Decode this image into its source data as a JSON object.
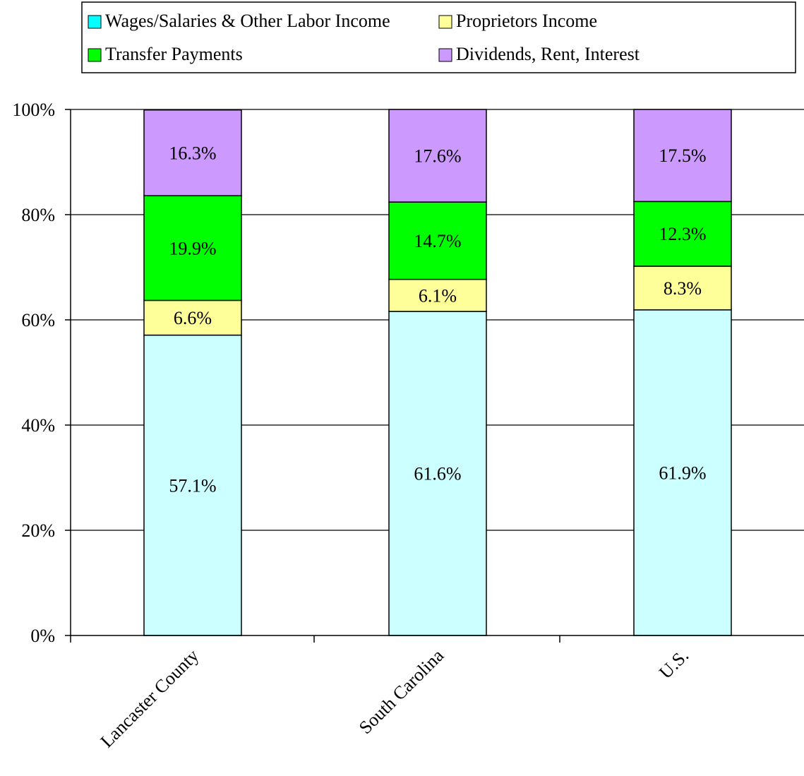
{
  "chart_data": {
    "type": "bar",
    "stacked": true,
    "percent_stacked": true,
    "categories": [
      "Lancaster County",
      "South Carolina",
      "U.S."
    ],
    "series": [
      {
        "name": "Wages/Salaries & Other Labor Income",
        "values": [
          57.1,
          61.6,
          61.9
        ],
        "color": "#CCFFFF",
        "legend_color": "#00FFFF"
      },
      {
        "name": "Proprietors Income",
        "values": [
          6.6,
          6.1,
          8.3
        ],
        "color": "#FFFF99",
        "legend_color": "#FFFF99"
      },
      {
        "name": "Transfer Payments",
        "values": [
          19.9,
          14.7,
          12.3
        ],
        "color": "#00FF00",
        "legend_color": "#00FF00"
      },
      {
        "name": "Dividends, Rent, Interest",
        "values": [
          16.3,
          17.6,
          17.5
        ],
        "color": "#CC99FF",
        "legend_color": "#CC99FF"
      }
    ],
    "data_labels": [
      [
        "57.1%",
        "61.6%",
        "61.9%"
      ],
      [
        "6.6%",
        "6.1%",
        "8.3%"
      ],
      [
        "19.9%",
        "14.7%",
        "12.3%"
      ],
      [
        "16.3%",
        "17.6%",
        "17.5%"
      ]
    ],
    "y_ticks": [
      "0%",
      "20%",
      "40%",
      "60%",
      "80%",
      "100%"
    ],
    "ylim": [
      0,
      100
    ],
    "title": "",
    "xlabel": "",
    "ylabel": "",
    "grid": true,
    "legend_position": "top"
  }
}
